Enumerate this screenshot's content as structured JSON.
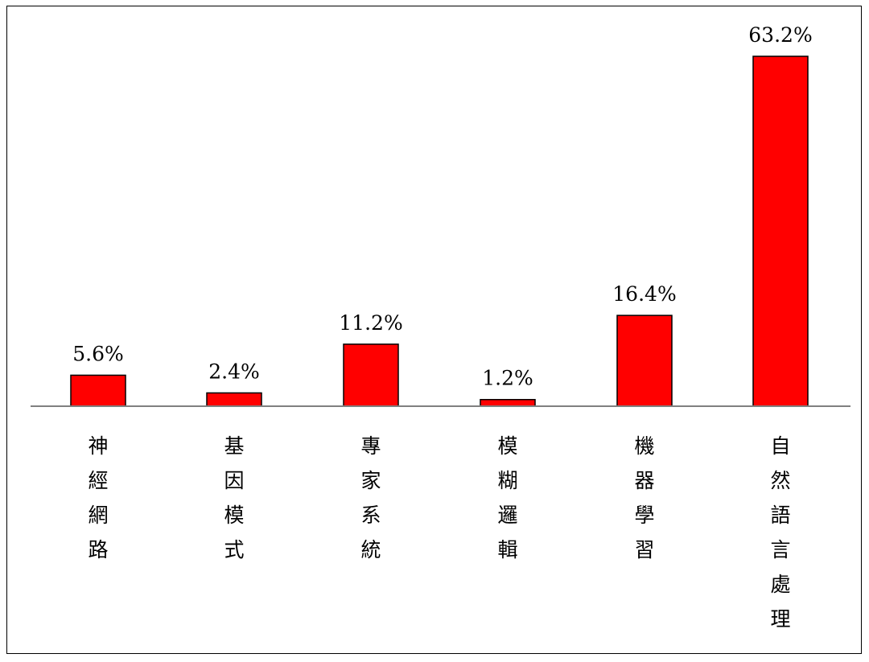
{
  "chart_data": {
    "type": "bar",
    "categories": [
      "神經網路",
      "基因模式",
      "專家系統",
      "模糊邏輯",
      "機器學習",
      "自然語言處理"
    ],
    "values": [
      5.6,
      2.4,
      11.2,
      1.2,
      16.4,
      63.2
    ],
    "value_labels": [
      "5.6%",
      "2.4%",
      "11.2%",
      "1.2%",
      "16.4%",
      "63.2%"
    ],
    "title": "",
    "xlabel": "",
    "ylabel": "",
    "ylim": [
      0,
      63.2
    ],
    "grid": false,
    "legend": "none",
    "category_label_orientation": "vertical",
    "colors": {
      "bar": "#ff0000",
      "bar_outline": "#000000",
      "axis": "#808080"
    }
  }
}
